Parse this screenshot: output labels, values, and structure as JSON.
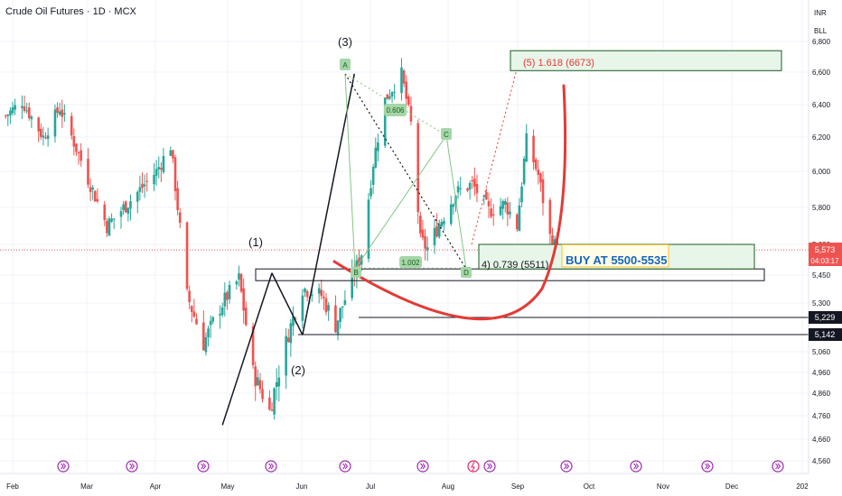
{
  "header": {
    "title": "Crude Oil Futures · 1D · MCX"
  },
  "price_scale": {
    "currency": "INR",
    "unit": "BLL",
    "last_price": "5,573",
    "countdown": "04:03:17",
    "level_a": "5,229",
    "level_b": "5,142"
  },
  "colors": {
    "bull": "#26a69a",
    "bear": "#ef5350",
    "target_fill": "#e8f5e9",
    "target_border": "#1b5e20",
    "arc": "#e53935",
    "buy_text": "#1565c0",
    "buy_fill": "#fffde7",
    "event_icon": "#9c27b0",
    "axis_text": "#131722"
  },
  "chart_data": {
    "type": "candlestick",
    "title": "Crude Oil Futures · 1D · MCX",
    "y_ticks": [
      4560,
      4660,
      4760,
      4860,
      4960,
      5060,
      5142,
      5229,
      5300,
      5450,
      5600,
      5800,
      6000,
      6200,
      6400,
      6600,
      6800
    ],
    "y_tick_labels": [
      "4,560",
      "4,660",
      "4,760",
      "4,860",
      "4,960",
      "5,060",
      "5,142",
      "5,229",
      "5,300",
      "5,450",
      "5,600",
      "5,800",
      "6,000",
      "6,200",
      "6,400",
      "6,600",
      "6,800"
    ],
    "x_months": [
      "Feb",
      "Mar",
      "Apr",
      "May",
      "Jun",
      "Jul",
      "Aug",
      "Sep",
      "Oct",
      "Nov",
      "Dec",
      "202"
    ],
    "last_price": 5573,
    "wave_labels": [
      "(1)",
      "(2)",
      "(3)"
    ],
    "pattern_points": [
      "A",
      "C",
      "B",
      "D"
    ],
    "fib_labels": [
      "0.606",
      "1.002"
    ],
    "target_label": "(5) 1.618 (6673)",
    "support_label": "4) 0.739 (5511)",
    "buy_label": "BUY AT 5500-5535",
    "horizontal_levels": [
      5450,
      5229,
      5142
    ],
    "target_zone": [
      6610,
      6740
    ],
    "buy_zone": [
      5480,
      5600
    ],
    "waves": [
      {
        "from": [
          "2024-04-30",
          4720
        ],
        "to": [
          "2024-05-21",
          5460
        ]
      },
      {
        "from": [
          "2024-05-21",
          5460
        ],
        "to": [
          "2024-06-03",
          5140
        ]
      },
      {
        "from": [
          "2024-06-03",
          5140
        ],
        "to": [
          "2024-06-25",
          6590
        ]
      }
    ]
  }
}
